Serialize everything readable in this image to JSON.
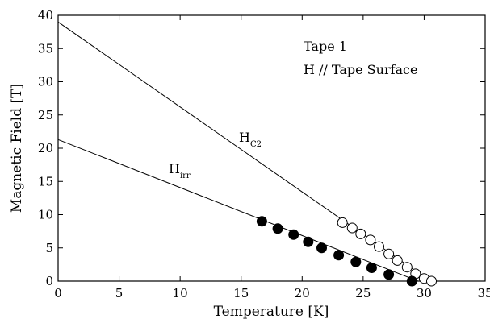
{
  "chart_data": {
    "type": "scatter",
    "xlabel": "Temperature [K]",
    "ylabel": "Magnetic Field  [T]",
    "xlim": [
      0,
      35
    ],
    "ylim": [
      0,
      40
    ],
    "xticks": [
      0,
      5,
      10,
      15,
      20,
      25,
      30,
      35
    ],
    "yticks": [
      0,
      5,
      10,
      15,
      20,
      25,
      30,
      35,
      40
    ],
    "grid": false,
    "annotations": {
      "line1": "Tape 1",
      "line2": "H // Tape Surface"
    },
    "series": [
      {
        "name": "H",
        "subscript": "C2",
        "kind": "line",
        "x": [
          0,
          30.5
        ],
        "y": [
          39,
          0
        ]
      },
      {
        "name": "H",
        "subscript": "irr",
        "kind": "line",
        "x": [
          0,
          29.5
        ],
        "y": [
          21.3,
          0
        ]
      },
      {
        "name": "",
        "kind": "markers",
        "marker": "open-circle",
        "x": [
          23.3,
          24.1,
          24.8,
          25.6,
          26.3,
          27.1,
          27.8,
          28.6,
          29.3,
          30.0,
          30.6
        ],
        "y": [
          8.8,
          8.0,
          7.1,
          6.2,
          5.2,
          4.1,
          3.1,
          2.1,
          1.1,
          0.4,
          0.0
        ]
      },
      {
        "name": "",
        "kind": "markers",
        "marker": "filled-circle",
        "x": [
          16.7,
          18.0,
          19.3,
          20.5,
          21.6,
          23.0,
          24.4,
          25.7,
          27.1,
          29.0
        ],
        "y": [
          9.0,
          7.9,
          7.0,
          5.9,
          5.0,
          3.9,
          2.9,
          2.0,
          1.0,
          0.0
        ]
      }
    ]
  }
}
